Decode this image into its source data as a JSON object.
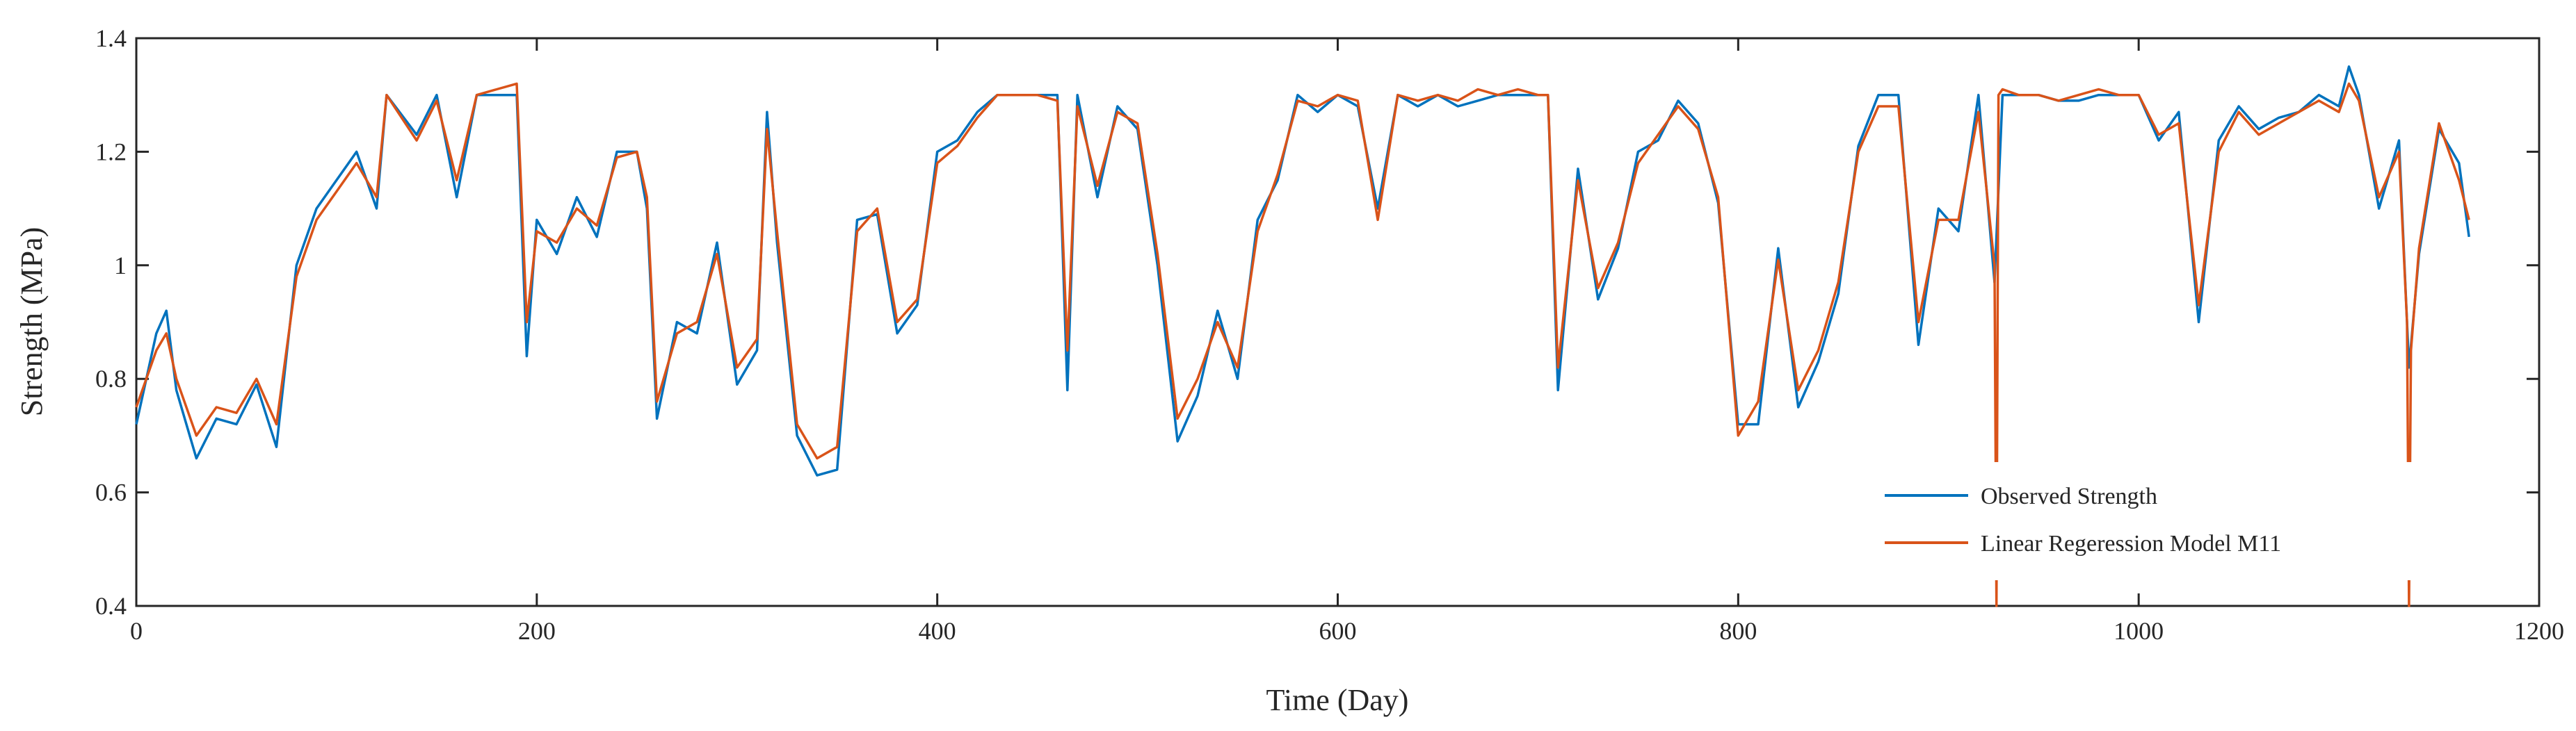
{
  "chart_data": {
    "type": "line",
    "title": "",
    "xlabel": "Time (Day)",
    "ylabel": "Strength (MPa)",
    "xlim": [
      0,
      1200
    ],
    "ylim": [
      0.4,
      1.4
    ],
    "x_ticks": [
      "0",
      "200",
      "400",
      "600",
      "800",
      "1000",
      "1200"
    ],
    "y_ticks": [
      "0.4",
      "0.6",
      "0.8",
      "1",
      "1.2",
      "1.4"
    ],
    "grid": false,
    "legend_position": "bottom-right",
    "series": [
      {
        "name": "Observed Strength",
        "color": "#0072BD",
        "x": [
          0,
          10,
          15,
          20,
          30,
          40,
          50,
          60,
          70,
          80,
          90,
          100,
          110,
          120,
          125,
          140,
          150,
          160,
          170,
          180,
          190,
          195,
          200,
          210,
          220,
          230,
          240,
          250,
          255,
          260,
          270,
          280,
          290,
          300,
          310,
          315,
          320,
          330,
          340,
          350,
          360,
          370,
          380,
          390,
          400,
          410,
          420,
          430,
          440,
          450,
          460,
          465,
          470,
          480,
          490,
          500,
          510,
          520,
          530,
          540,
          550,
          560,
          570,
          580,
          590,
          600,
          610,
          620,
          630,
          640,
          650,
          660,
          670,
          680,
          690,
          700,
          705,
          710,
          720,
          730,
          740,
          750,
          760,
          770,
          780,
          790,
          800,
          810,
          820,
          830,
          840,
          850,
          860,
          870,
          880,
          890,
          900,
          910,
          920,
          928,
          932,
          940,
          950,
          960,
          970,
          980,
          990,
          1000,
          1010,
          1020,
          1030,
          1040,
          1050,
          1060,
          1070,
          1080,
          1090,
          1100,
          1105,
          1110,
          1120,
          1130,
          1135,
          1140,
          1150,
          1160,
          1165
        ],
        "y": [
          0.72,
          0.88,
          0.92,
          0.78,
          0.66,
          0.73,
          0.72,
          0.79,
          0.68,
          1.0,
          1.1,
          1.15,
          1.2,
          1.1,
          1.3,
          1.23,
          1.3,
          1.12,
          1.3,
          1.3,
          1.3,
          0.84,
          1.08,
          1.02,
          1.12,
          1.05,
          1.2,
          1.2,
          1.1,
          0.73,
          0.9,
          0.88,
          1.04,
          0.79,
          0.85,
          1.27,
          1.04,
          0.7,
          0.63,
          0.64,
          1.08,
          1.09,
          0.88,
          0.93,
          1.2,
          1.22,
          1.27,
          1.3,
          1.3,
          1.3,
          1.3,
          0.78,
          1.3,
          1.12,
          1.28,
          1.24,
          1.0,
          0.69,
          0.77,
          0.92,
          0.8,
          1.08,
          1.15,
          1.3,
          1.27,
          1.3,
          1.28,
          1.1,
          1.3,
          1.28,
          1.3,
          1.28,
          1.29,
          1.3,
          1.3,
          1.3,
          1.3,
          0.78,
          1.17,
          0.94,
          1.03,
          1.2,
          1.22,
          1.29,
          1.25,
          1.11,
          0.72,
          0.72,
          1.03,
          0.75,
          0.83,
          0.95,
          1.21,
          1.3,
          1.3,
          0.86,
          1.1,
          1.06,
          1.3,
          0.97,
          1.3,
          1.3,
          1.3,
          1.29,
          1.29,
          1.3,
          1.3,
          1.3,
          1.22,
          1.27,
          0.9,
          1.22,
          1.28,
          1.24,
          1.26,
          1.27,
          1.3,
          1.28,
          1.35,
          1.3,
          1.1,
          1.22,
          0.82,
          1.02,
          1.24,
          1.18,
          1.05
        ]
      },
      {
        "name": "Linear Regeression Model M11",
        "color": "#D95319",
        "x": [
          0,
          10,
          15,
          20,
          30,
          40,
          50,
          60,
          70,
          80,
          90,
          100,
          110,
          120,
          125,
          140,
          150,
          160,
          170,
          180,
          190,
          195,
          200,
          210,
          220,
          230,
          240,
          250,
          255,
          260,
          270,
          280,
          290,
          300,
          310,
          315,
          320,
          330,
          340,
          350,
          360,
          370,
          380,
          390,
          400,
          410,
          420,
          430,
          440,
          450,
          460,
          465,
          470,
          480,
          490,
          500,
          510,
          520,
          530,
          540,
          550,
          560,
          570,
          580,
          590,
          600,
          610,
          620,
          630,
          640,
          650,
          660,
          670,
          680,
          690,
          700,
          705,
          710,
          720,
          730,
          740,
          750,
          760,
          770,
          780,
          790,
          800,
          810,
          820,
          830,
          840,
          850,
          860,
          870,
          880,
          890,
          900,
          910,
          920,
          928,
          929,
          930,
          932,
          940,
          950,
          960,
          970,
          980,
          990,
          1000,
          1010,
          1020,
          1030,
          1040,
          1050,
          1060,
          1070,
          1080,
          1090,
          1100,
          1105,
          1110,
          1120,
          1130,
          1134,
          1135,
          1136,
          1140,
          1150,
          1160,
          1165
        ],
        "y": [
          0.75,
          0.85,
          0.88,
          0.8,
          0.7,
          0.75,
          0.74,
          0.8,
          0.72,
          0.98,
          1.08,
          1.13,
          1.18,
          1.12,
          1.3,
          1.22,
          1.29,
          1.15,
          1.3,
          1.31,
          1.32,
          0.9,
          1.06,
          1.04,
          1.1,
          1.07,
          1.19,
          1.2,
          1.12,
          0.76,
          0.88,
          0.9,
          1.02,
          0.82,
          0.87,
          1.24,
          1.06,
          0.72,
          0.66,
          0.68,
          1.06,
          1.1,
          0.9,
          0.94,
          1.18,
          1.21,
          1.26,
          1.3,
          1.3,
          1.3,
          1.29,
          0.85,
          1.28,
          1.14,
          1.27,
          1.25,
          1.02,
          0.73,
          0.8,
          0.9,
          0.82,
          1.06,
          1.16,
          1.29,
          1.28,
          1.3,
          1.29,
          1.08,
          1.3,
          1.29,
          1.3,
          1.29,
          1.31,
          1.3,
          1.31,
          1.3,
          1.3,
          0.82,
          1.15,
          0.96,
          1.04,
          1.18,
          1.23,
          1.28,
          1.24,
          1.12,
          0.7,
          0.76,
          1.01,
          0.78,
          0.85,
          0.97,
          1.2,
          1.28,
          1.28,
          0.9,
          1.08,
          1.08,
          1.27,
          1.0,
          0.4,
          1.3,
          1.31,
          1.3,
          1.3,
          1.29,
          1.3,
          1.31,
          1.3,
          1.3,
          1.23,
          1.25,
          0.93,
          1.2,
          1.27,
          1.23,
          1.25,
          1.27,
          1.29,
          1.27,
          1.32,
          1.29,
          1.12,
          1.2,
          0.9,
          0.4,
          0.85,
          1.03,
          1.25,
          1.15,
          1.08
        ]
      }
    ]
  }
}
